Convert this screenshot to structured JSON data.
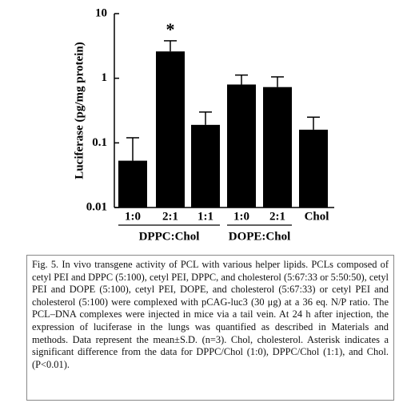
{
  "chart_data": {
    "type": "bar",
    "log_y": true,
    "ylabel": "Luciferase (pg/mg protein)",
    "categories": [
      "1:0",
      "2:1",
      "1:1",
      "1:0",
      "2:1",
      "Chol"
    ],
    "category_groups": [
      "DPPC:Chol",
      "DPPC:Chol",
      "DPPC:Chol",
      "DOPE:Chol",
      "DOPE:Chol",
      null
    ],
    "values": [
      0.053,
      2.6,
      0.19,
      0.8,
      0.73,
      0.16
    ],
    "errors": [
      0.067,
      1.2,
      0.11,
      0.32,
      0.32,
      0.09
    ],
    "color": "#000000",
    "ylim": [
      0.01,
      10
    ],
    "yticks": [
      0.01,
      0.1,
      1,
      10
    ],
    "annotations": [
      {
        "text": "*",
        "category": "2:1"
      }
    ]
  },
  "caption": "Fig. 5. In vivo transgene activity of PCL with various helper lipids. PCLs composed of cetyl PEI and DPPC (5:100), cetyl PEI, DPPC, and cholesterol (5:67:33 or 5:50:50), cetyl PEI and DOPE (5:100), cetyl PEI, DOPE, and cholesterol (5:67:33) or cetyl PEI and cholesterol (5:100) were complexed with pCAG-luc3 (30 μg) at a 36 eq. N/P ratio. The PCL–DNA complexes were injected in mice via a tail vein. At 24 h after injection, the expression of luciferase in the lungs was quantified as described in Materials and methods. Data represent the mean±S.D. (n=3). Chol, cholesterol. Asterisk indicates a significant difference from the data for DPPC/Chol (1:0), DPPC/Chol (1:1), and Chol. (P<0.01)."
}
